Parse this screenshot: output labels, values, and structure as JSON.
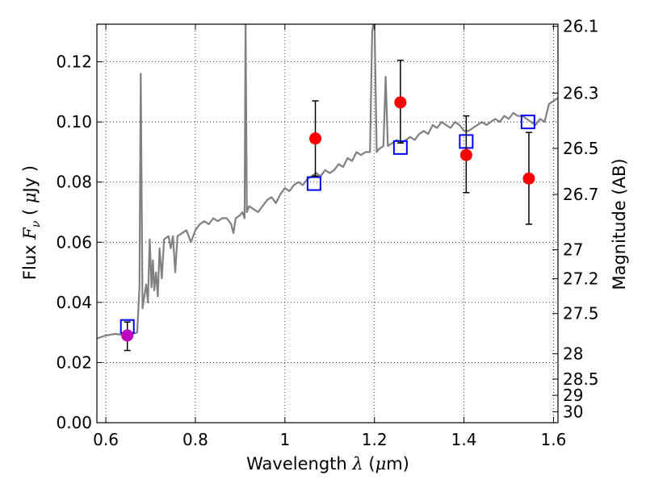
{
  "chart_data": {
    "type": "scatter",
    "xlabel": {
      "text": "Wavelength  ",
      "symbol": "λ",
      "unit_open": " (",
      "unit_mu": "μ",
      "unit_rest": "m)"
    },
    "ylabel": {
      "text": "Flux  ",
      "symbol": "F",
      "sub": "ν",
      "unit_open": "  ( ",
      "unit_mu": "μ",
      "unit_rest": "Jy )"
    },
    "y2label": "Magnitude (AB)",
    "xlim": [
      0.58,
      1.61
    ],
    "ylim": [
      0.0,
      0.1325
    ],
    "xticks": [
      0.6,
      0.8,
      1.0,
      1.2,
      1.4,
      1.6
    ],
    "xtick_labels": [
      "0.6",
      "0.8",
      "1",
      "1.2",
      "1.4",
      "1.6"
    ],
    "yticks": [
      0.0,
      0.02,
      0.04,
      0.06,
      0.08,
      0.1,
      0.12
    ],
    "ytick_labels": [
      "0.00",
      "0.02",
      "0.04",
      "0.06",
      "0.08",
      "0.10",
      "0.12"
    ],
    "right_ticks": [
      {
        "label": "26.1",
        "flux": 0.1318
      },
      {
        "label": "26.3",
        "flux": 0.1096
      },
      {
        "label": "26.5",
        "flux": 0.0912
      },
      {
        "label": "26.7",
        "flux": 0.0759
      },
      {
        "label": "27",
        "flux": 0.0575
      },
      {
        "label": "27.2",
        "flux": 0.0479
      },
      {
        "label": "27.5",
        "flux": 0.0363
      },
      {
        "label": "28",
        "flux": 0.0229
      },
      {
        "label": "28.5",
        "flux": 0.0145
      },
      {
        "label": "29",
        "flux": 0.0091
      },
      {
        "label": "30",
        "flux": 0.0036
      }
    ],
    "grid": true,
    "series": [
      {
        "kind": "line",
        "color": "#808080",
        "points": [
          [
            0.58,
            0.028
          ],
          [
            0.6,
            0.029
          ],
          [
            0.62,
            0.0295
          ],
          [
            0.64,
            0.0292
          ],
          [
            0.66,
            0.0295
          ],
          [
            0.67,
            0.03
          ],
          [
            0.675,
            0.045
          ],
          [
            0.678,
            0.116
          ],
          [
            0.682,
            0.038
          ],
          [
            0.69,
            0.046
          ],
          [
            0.694,
            0.04
          ],
          [
            0.698,
            0.061
          ],
          [
            0.702,
            0.045
          ],
          [
            0.705,
            0.054
          ],
          [
            0.708,
            0.044
          ],
          [
            0.712,
            0.05
          ],
          [
            0.716,
            0.042
          ],
          [
            0.72,
            0.058
          ],
          [
            0.725,
            0.048
          ],
          [
            0.73,
            0.061
          ],
          [
            0.74,
            0.062
          ],
          [
            0.745,
            0.058
          ],
          [
            0.75,
            0.062
          ],
          [
            0.755,
            0.05
          ],
          [
            0.76,
            0.062
          ],
          [
            0.77,
            0.063
          ],
          [
            0.78,
            0.064
          ],
          [
            0.79,
            0.06
          ],
          [
            0.8,
            0.064
          ],
          [
            0.81,
            0.066
          ],
          [
            0.82,
            0.067
          ],
          [
            0.83,
            0.066
          ],
          [
            0.84,
            0.068
          ],
          [
            0.85,
            0.067
          ],
          [
            0.86,
            0.068
          ],
          [
            0.87,
            0.068
          ],
          [
            0.88,
            0.066
          ],
          [
            0.885,
            0.063
          ],
          [
            0.89,
            0.068
          ],
          [
            0.9,
            0.069
          ],
          [
            0.905,
            0.07
          ],
          [
            0.91,
            0.068
          ],
          [
            0.912,
            0.135
          ],
          [
            0.915,
            0.07
          ],
          [
            0.92,
            0.072
          ],
          [
            0.93,
            0.071
          ],
          [
            0.94,
            0.07
          ],
          [
            0.95,
            0.072
          ],
          [
            0.96,
            0.074
          ],
          [
            0.97,
            0.075
          ],
          [
            0.98,
            0.073
          ],
          [
            0.99,
            0.076
          ],
          [
            1.0,
            0.078
          ],
          [
            1.01,
            0.077
          ],
          [
            1.02,
            0.079
          ],
          [
            1.03,
            0.08
          ],
          [
            1.04,
            0.079
          ],
          [
            1.05,
            0.081
          ],
          [
            1.06,
            0.082
          ],
          [
            1.07,
            0.083
          ],
          [
            1.08,
            0.082
          ],
          [
            1.09,
            0.084
          ],
          [
            1.1,
            0.083
          ],
          [
            1.11,
            0.084
          ],
          [
            1.12,
            0.086
          ],
          [
            1.13,
            0.085
          ],
          [
            1.14,
            0.088
          ],
          [
            1.15,
            0.087
          ],
          [
            1.16,
            0.09
          ],
          [
            1.17,
            0.089
          ],
          [
            1.18,
            0.09
          ],
          [
            1.19,
            0.09
          ],
          [
            1.195,
            0.13
          ],
          [
            1.2,
            0.135
          ],
          [
            1.205,
            0.09
          ],
          [
            1.21,
            0.091
          ],
          [
            1.22,
            0.092
          ],
          [
            1.225,
            0.115
          ],
          [
            1.23,
            0.092
          ],
          [
            1.24,
            0.093
          ],
          [
            1.25,
            0.094
          ],
          [
            1.26,
            0.093
          ],
          [
            1.27,
            0.094
          ],
          [
            1.28,
            0.095
          ],
          [
            1.29,
            0.094
          ],
          [
            1.3,
            0.096
          ],
          [
            1.31,
            0.097
          ],
          [
            1.32,
            0.096
          ],
          [
            1.33,
            0.099
          ],
          [
            1.34,
            0.098
          ],
          [
            1.35,
            0.1
          ],
          [
            1.36,
            0.099
          ],
          [
            1.37,
            0.098
          ],
          [
            1.38,
            0.1
          ],
          [
            1.39,
            0.099
          ],
          [
            1.4,
            0.097
          ],
          [
            1.41,
            0.097
          ],
          [
            1.42,
            0.098
          ],
          [
            1.43,
            0.099
          ],
          [
            1.44,
            0.1
          ],
          [
            1.45,
            0.099
          ],
          [
            1.46,
            0.1
          ],
          [
            1.47,
            0.101
          ],
          [
            1.48,
            0.1
          ],
          [
            1.49,
            0.102
          ],
          [
            1.5,
            0.101
          ],
          [
            1.51,
            0.103
          ],
          [
            1.52,
            0.102
          ],
          [
            1.53,
            0.102
          ],
          [
            1.54,
            0.101
          ],
          [
            1.55,
            0.1
          ],
          [
            1.56,
            0.099
          ],
          [
            1.57,
            0.101
          ],
          [
            1.58,
            0.1
          ],
          [
            1.59,
            0.106
          ],
          [
            1.6,
            0.107
          ],
          [
            1.61,
            0.108
          ]
        ]
      },
      {
        "kind": "measured",
        "color": "#ff0000",
        "points": [
          {
            "x": 1.068,
            "y": 0.0945,
            "err_low": 0.082,
            "err_high": 0.107
          },
          {
            "x": 1.258,
            "y": 0.1065,
            "err_low": 0.093,
            "err_high": 0.1205
          },
          {
            "x": 1.405,
            "y": 0.089,
            "err_low": 0.0765,
            "err_high": 0.102
          },
          {
            "x": 1.545,
            "y": 0.0812,
            "err_low": 0.066,
            "err_high": 0.0965
          }
        ]
      },
      {
        "kind": "measured",
        "color": "#bf00bf",
        "points": [
          {
            "x": 0.648,
            "y": 0.029,
            "err_low": 0.024,
            "err_high": 0.0335
          }
        ]
      },
      {
        "kind": "model",
        "color": "#0000ff",
        "points": [
          {
            "x": 0.648,
            "y": 0.032
          },
          {
            "x": 1.065,
            "y": 0.0795
          },
          {
            "x": 1.258,
            "y": 0.0915
          },
          {
            "x": 1.405,
            "y": 0.0935
          },
          {
            "x": 1.543,
            "y": 0.1
          }
        ]
      }
    ]
  }
}
